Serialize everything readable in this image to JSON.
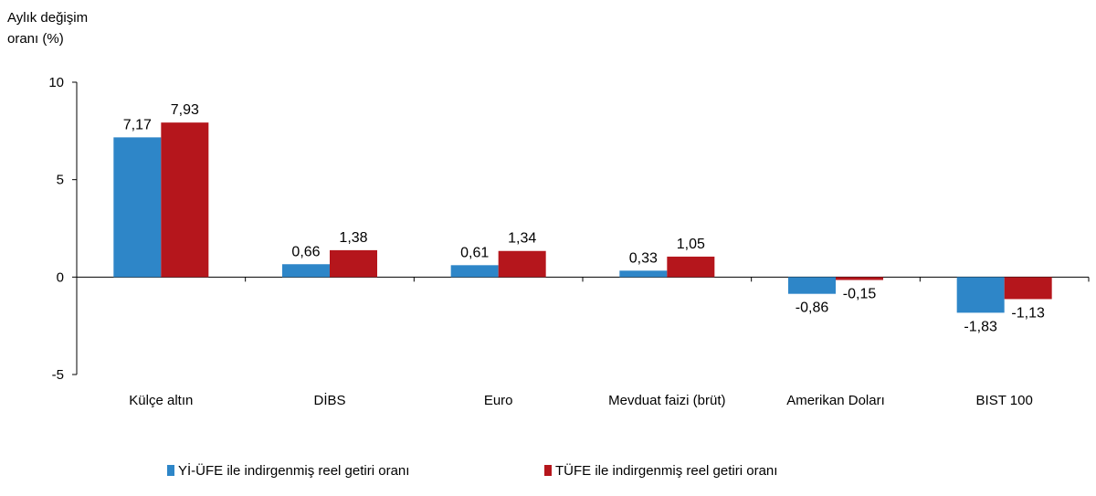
{
  "chart_data": {
    "type": "bar",
    "ylabel": "Aylık değişim\noranı (%)",
    "ylim": [
      -5,
      10
    ],
    "yticks": [
      10,
      5,
      0,
      -5
    ],
    "categories": [
      "Külçe altın",
      "DİBS",
      "Euro",
      "Mevduat faizi (brüt)",
      "Amerikan Doları",
      "BIST 100"
    ],
    "series": [
      {
        "name": "Yİ-ÜFE ile indirgenmiş reel getiri oranı",
        "color": "#2e86c8",
        "values": [
          7.17,
          0.66,
          0.61,
          0.33,
          -0.86,
          -1.83
        ],
        "labels": [
          "7,17",
          "0,66",
          "0,61",
          "0,33",
          "-0,86",
          "-1,83"
        ]
      },
      {
        "name": "TÜFE ile indirgenmiş reel getiri oranı",
        "color": "#b5161c",
        "values": [
          7.93,
          1.38,
          1.34,
          1.05,
          -0.15,
          -1.13
        ],
        "labels": [
          "7,93",
          "1,38",
          "1,34",
          "1,05",
          "-0,15",
          "-1,13"
        ]
      }
    ],
    "grid": false,
    "legend": "bottom"
  }
}
